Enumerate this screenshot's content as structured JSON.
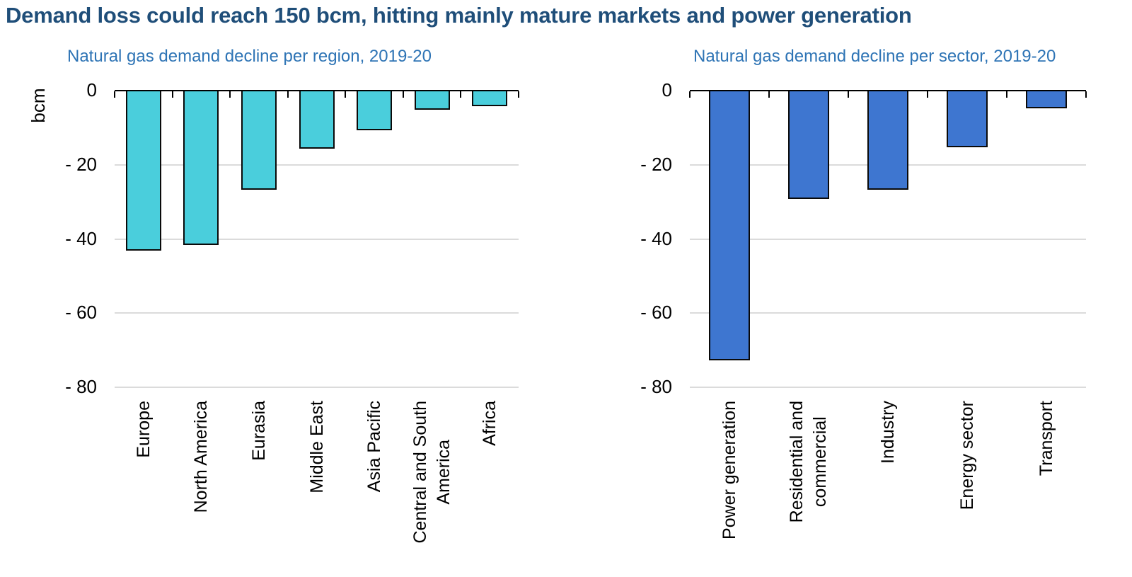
{
  "title": {
    "text": "Demand loss could reach 150 bcm, hitting mainly mature markets and power generation",
    "color": "#1F4E79"
  },
  "chart_data": [
    {
      "type": "bar",
      "subtitle": "Natural gas demand decline per region, 2019-20",
      "subtitle_color": "#2E74B5",
      "unit_label": "bcm",
      "categories": [
        "Europe",
        "North America",
        "Eurasia",
        "Middle East",
        "Asia Pacific",
        "Central and South America",
        "Africa"
      ],
      "category_lines": [
        [
          "Europe"
        ],
        [
          "North America"
        ],
        [
          "Eurasia"
        ],
        [
          "Middle East"
        ],
        [
          "Asia Pacific"
        ],
        [
          "Central and South",
          "America"
        ],
        [
          "Africa"
        ]
      ],
      "values": [
        -43,
        -41.5,
        -26.5,
        -15.5,
        -10.5,
        -5,
        -4
      ],
      "bar_color": "#4ACEDC",
      "bar_border_color": "#0A0A0A",
      "ylabel": "bcm",
      "ylim": [
        -80,
        0
      ],
      "yticks": [
        0,
        -20,
        -40,
        -60,
        -80
      ],
      "ytick_labels": [
        "0",
        "- 20",
        "- 40",
        "- 60",
        "- 80"
      ],
      "grid": true,
      "gridline_color": "#DBDBDB",
      "legend": "none"
    },
    {
      "type": "bar",
      "subtitle": "Natural gas demand decline per sector, 2019-20",
      "subtitle_color": "#2E74B5",
      "unit_label": "",
      "categories": [
        "Power generation",
        "Residential and commercial",
        "Industry",
        "Energy sector",
        "Transport"
      ],
      "category_lines": [
        [
          "Power generation"
        ],
        [
          "Residential and",
          "commercial"
        ],
        [
          "Industry"
        ],
        [
          "Energy sector"
        ],
        [
          "Transport"
        ]
      ],
      "values": [
        -72.5,
        -29,
        -26.5,
        -15,
        -4.5
      ],
      "bar_color": "#3E76D0",
      "bar_border_color": "#0A0A0A",
      "ylabel": "",
      "ylim": [
        -80,
        0
      ],
      "yticks": [
        0,
        -20,
        -40,
        -60,
        -80
      ],
      "ytick_labels": [
        "0",
        "- 20",
        "- 40",
        "- 60",
        "- 80"
      ],
      "grid": true,
      "gridline_color": "#DBDBDB",
      "legend": "none"
    }
  ]
}
